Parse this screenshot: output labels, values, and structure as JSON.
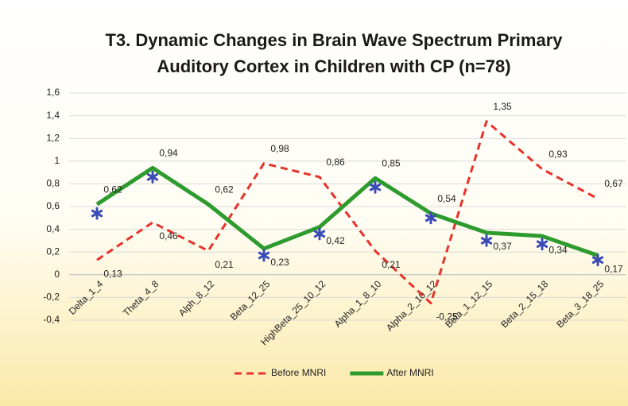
{
  "chart_data": {
    "type": "line",
    "title": [
      "T3. Dynamic Changes in Brain Wave Spectrum Primary",
      "Auditory Cortex in Children with CP (n=78)"
    ],
    "categories": [
      "Delta_1_4",
      "Theta_4_8",
      "Alph_8_12",
      "Beta_12_25",
      "HighBeta_25_10_12",
      "Alpha_1_8_10",
      "Alpha_2_10_12",
      "Beta_1_12_15",
      "Beta_2_15_18",
      "Beta_3_18_25"
    ],
    "series": [
      {
        "name": "Before MNRI",
        "color": "#e8312a",
        "dashed": true,
        "values": [
          0.13,
          0.46,
          0.21,
          0.98,
          0.86,
          0.21,
          -0.25,
          1.35,
          0.93,
          0.67
        ],
        "value_labels": [
          "0,13",
          "0,46",
          "0,21",
          "0,98",
          "0,86",
          "0,21",
          "-0,25",
          "1,35",
          "0,93",
          "0,67"
        ]
      },
      {
        "name": "After MNRI",
        "color": "#2e9b2e",
        "dashed": false,
        "values": [
          0.62,
          0.94,
          0.62,
          0.23,
          0.42,
          0.85,
          0.54,
          0.37,
          0.34,
          0.17
        ],
        "value_labels": [
          "0,62",
          "0,94",
          "0,62",
          "0,23",
          "0,42",
          "0,85",
          "0,54",
          "0,37",
          "0,34",
          "0,17"
        ]
      }
    ],
    "markers": {
      "color": "#3b4bb5",
      "values": [
        0.54,
        0.86,
        null,
        0.17,
        0.36,
        0.77,
        0.5,
        0.3,
        0.27,
        0.13
      ]
    },
    "ylim": [
      -0.4,
      1.6
    ],
    "yticks": [
      {
        "value": -0.4,
        "label": "-0,4"
      },
      {
        "value": -0.2,
        "label": "-0,2"
      },
      0,
      {
        "value": 0.2,
        "label": "0,2"
      },
      {
        "value": 0.4,
        "label": "0,4"
      },
      {
        "value": 0.6,
        "label": "0,6"
      },
      {
        "value": 0.8,
        "label": "0,8"
      },
      1,
      {
        "value": 1.2,
        "label": "1,2"
      },
      {
        "value": 1.4,
        "label": "1,4"
      },
      {
        "value": 1.6,
        "label": "1,6"
      }
    ],
    "grid": true,
    "legend": "bottom"
  }
}
